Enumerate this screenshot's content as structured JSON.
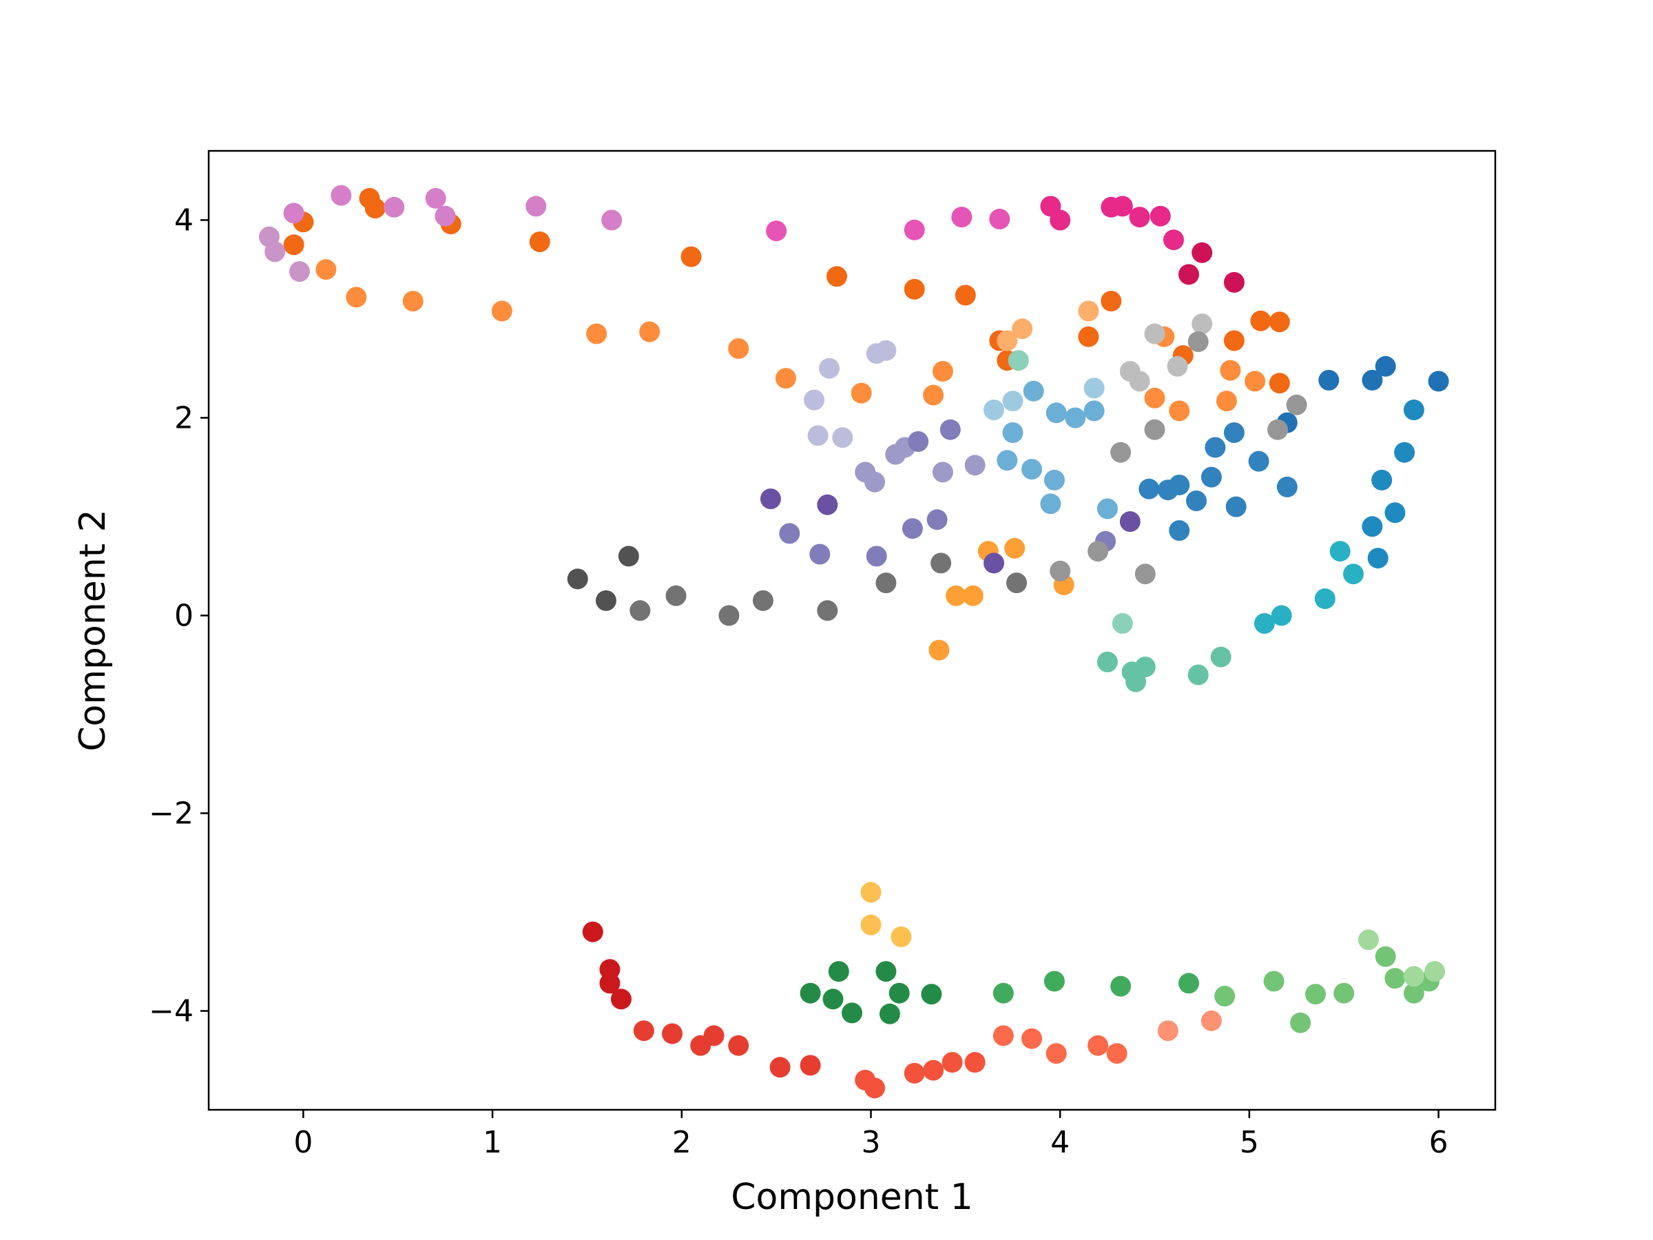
{
  "chart_data": {
    "type": "scatter",
    "title": "",
    "xlabel": "Component 1",
    "ylabel": "Component 2",
    "xlim": [
      -0.5,
      6.3
    ],
    "ylim": [
      -5.0,
      4.7
    ],
    "grid": false,
    "legend": "none",
    "xticks": [
      {
        "value": 0,
        "label": "0"
      },
      {
        "value": 1,
        "label": "1"
      },
      {
        "value": 2,
        "label": "2"
      },
      {
        "value": 3,
        "label": "3"
      },
      {
        "value": 4,
        "label": "4"
      },
      {
        "value": 5,
        "label": "5"
      },
      {
        "value": 6,
        "label": "6"
      }
    ],
    "yticks": [
      {
        "value": 4,
        "label": "4"
      },
      {
        "value": 2,
        "label": "2"
      },
      {
        "value": 0,
        "label": "0"
      },
      {
        "value": -2,
        "label": "−2"
      },
      {
        "value": -4,
        "label": "−4"
      }
    ],
    "series": [
      {
        "color": "#f16913",
        "points": [
          [
            0.0,
            3.98
          ],
          [
            0.35,
            4.22
          ],
          [
            0.38,
            4.12
          ],
          [
            0.78,
            3.96
          ],
          [
            -0.05,
            3.75
          ],
          [
            1.25,
            3.78
          ],
          [
            2.05,
            3.63
          ],
          [
            2.82,
            3.43
          ],
          [
            3.23,
            3.3
          ],
          [
            3.5,
            3.24
          ],
          [
            3.68,
            2.78
          ],
          [
            3.72,
            2.58
          ],
          [
            4.15,
            2.82
          ],
          [
            4.27,
            3.18
          ],
          [
            4.65,
            2.63
          ],
          [
            4.92,
            2.78
          ],
          [
            5.06,
            2.98
          ],
          [
            5.16,
            2.97
          ],
          [
            5.16,
            2.35
          ]
        ]
      },
      {
        "color": "#fd8d3c",
        "points": [
          [
            0.12,
            3.5
          ],
          [
            0.28,
            3.22
          ],
          [
            0.58,
            3.18
          ],
          [
            1.05,
            3.08
          ],
          [
            1.55,
            2.85
          ],
          [
            1.83,
            2.87
          ],
          [
            2.3,
            2.7
          ],
          [
            2.55,
            2.4
          ],
          [
            2.95,
            2.25
          ],
          [
            3.33,
            2.23
          ],
          [
            3.38,
            2.47
          ],
          [
            4.55,
            2.82
          ],
          [
            4.5,
            2.2
          ],
          [
            4.63,
            2.07
          ],
          [
            4.88,
            2.17
          ],
          [
            4.9,
            2.48
          ],
          [
            5.03,
            2.37
          ]
        ]
      },
      {
        "color": "#fdae6b",
        "points": [
          [
            3.72,
            2.78
          ],
          [
            3.8,
            2.9
          ],
          [
            4.15,
            3.08
          ],
          [
            3.78,
            2.58
          ]
        ]
      },
      {
        "color": "#fd9f35",
        "points": [
          [
            3.62,
            0.65
          ],
          [
            3.76,
            0.68
          ],
          [
            3.45,
            0.2
          ],
          [
            3.54,
            0.2
          ],
          [
            4.02,
            0.31
          ],
          [
            3.36,
            -0.35
          ]
        ]
      },
      {
        "color": "#fdc050",
        "points": [
          [
            3.0,
            -2.8
          ],
          [
            3.0,
            -3.13
          ],
          [
            3.16,
            -3.25
          ]
        ]
      },
      {
        "color": "#d47fc8",
        "points": [
          [
            -0.05,
            4.07
          ],
          [
            0.2,
            4.25
          ],
          [
            0.48,
            4.13
          ],
          [
            0.7,
            4.22
          ],
          [
            0.75,
            4.04
          ],
          [
            1.23,
            4.14
          ],
          [
            1.63,
            4.0
          ]
        ]
      },
      {
        "color": "#c994c7",
        "points": [
          [
            -0.18,
            3.83
          ],
          [
            -0.15,
            3.68
          ],
          [
            -0.02,
            3.48
          ]
        ]
      },
      {
        "color": "#e655b5",
        "points": [
          [
            2.5,
            3.89
          ],
          [
            3.23,
            3.9
          ],
          [
            3.48,
            4.03
          ],
          [
            3.68,
            4.01
          ]
        ]
      },
      {
        "color": "#e7298a",
        "points": [
          [
            3.95,
            4.14
          ],
          [
            4.0,
            4.0
          ],
          [
            4.27,
            4.13
          ],
          [
            4.33,
            4.14
          ],
          [
            4.42,
            4.03
          ],
          [
            4.53,
            4.04
          ],
          [
            4.6,
            3.8
          ]
        ]
      },
      {
        "color": "#ce1256",
        "points": [
          [
            4.68,
            3.45
          ],
          [
            4.75,
            3.67
          ],
          [
            4.92,
            3.37
          ]
        ]
      },
      {
        "color": "#bcbddc",
        "points": [
          [
            2.7,
            2.18
          ],
          [
            2.78,
            2.5
          ],
          [
            3.03,
            2.65
          ],
          [
            3.08,
            2.68
          ],
          [
            2.72,
            1.82
          ],
          [
            2.85,
            1.8
          ]
        ]
      },
      {
        "color": "#9e9ac8",
        "points": [
          [
            2.97,
            1.45
          ],
          [
            3.02,
            1.35
          ],
          [
            3.13,
            1.63
          ],
          [
            3.18,
            1.7
          ],
          [
            3.38,
            1.45
          ],
          [
            3.55,
            1.52
          ]
        ]
      },
      {
        "color": "#807dba",
        "points": [
          [
            3.25,
            1.76
          ],
          [
            3.42,
            1.88
          ],
          [
            2.57,
            0.83
          ],
          [
            2.73,
            0.62
          ],
          [
            3.03,
            0.6
          ],
          [
            3.22,
            0.88
          ],
          [
            3.35,
            0.97
          ],
          [
            4.24,
            0.75
          ]
        ]
      },
      {
        "color": "#6a51a3",
        "points": [
          [
            2.47,
            1.18
          ],
          [
            2.77,
            1.12
          ],
          [
            4.37,
            0.95
          ],
          [
            3.65,
            0.53
          ]
        ]
      },
      {
        "color": "#9ecae1",
        "points": [
          [
            3.65,
            2.08
          ],
          [
            3.75,
            2.17
          ],
          [
            4.18,
            2.3
          ]
        ]
      },
      {
        "color": "#6baed6",
        "points": [
          [
            3.86,
            2.27
          ],
          [
            3.98,
            2.05
          ],
          [
            4.08,
            2.0
          ],
          [
            4.18,
            2.07
          ],
          [
            3.75,
            1.85
          ],
          [
            3.72,
            1.57
          ],
          [
            3.85,
            1.48
          ],
          [
            3.97,
            1.37
          ],
          [
            3.95,
            1.13
          ],
          [
            4.25,
            1.08
          ]
        ]
      },
      {
        "color": "#3182bd",
        "points": [
          [
            4.47,
            1.28
          ],
          [
            4.57,
            1.27
          ],
          [
            4.63,
            1.32
          ],
          [
            4.72,
            1.16
          ],
          [
            4.63,
            0.86
          ],
          [
            4.82,
            1.7
          ],
          [
            4.92,
            1.85
          ],
          [
            4.8,
            1.4
          ],
          [
            5.05,
            1.56
          ],
          [
            4.93,
            1.1
          ],
          [
            5.2,
            1.3
          ]
        ]
      },
      {
        "color": "#2171b5",
        "points": [
          [
            5.42,
            2.38
          ],
          [
            5.65,
            2.38
          ],
          [
            5.72,
            2.52
          ],
          [
            5.2,
            1.95
          ],
          [
            6.0,
            2.37
          ]
        ]
      },
      {
        "color": "#1f8ac0",
        "points": [
          [
            5.87,
            2.08
          ],
          [
            5.82,
            1.65
          ],
          [
            5.7,
            1.37
          ],
          [
            5.77,
            1.04
          ],
          [
            5.65,
            0.9
          ],
          [
            5.68,
            0.58
          ]
        ]
      },
      {
        "color": "#2ab0c5",
        "points": [
          [
            5.48,
            0.65
          ],
          [
            5.55,
            0.42
          ],
          [
            5.4,
            0.17
          ],
          [
            5.17,
            0.0
          ],
          [
            5.08,
            -0.08
          ]
        ]
      },
      {
        "color": "#66c2a4",
        "points": [
          [
            4.85,
            -0.42
          ],
          [
            4.73,
            -0.6
          ],
          [
            4.45,
            -0.52
          ],
          [
            4.38,
            -0.57
          ],
          [
            4.4,
            -0.67
          ],
          [
            4.25,
            -0.47
          ]
        ]
      },
      {
        "color": "#8bd0b8",
        "points": [
          [
            4.33,
            -0.08
          ],
          [
            3.78,
            2.58
          ]
        ]
      },
      {
        "color": "#bdbdbd",
        "points": [
          [
            4.5,
            2.85
          ],
          [
            4.37,
            2.47
          ],
          [
            4.42,
            2.37
          ],
          [
            4.62,
            2.52
          ],
          [
            4.75,
            2.95
          ]
        ]
      },
      {
        "color": "#969696",
        "points": [
          [
            4.73,
            2.77
          ],
          [
            5.25,
            2.13
          ],
          [
            5.15,
            1.88
          ],
          [
            4.5,
            1.88
          ],
          [
            4.32,
            1.65
          ],
          [
            4.45,
            0.42
          ],
          [
            4.2,
            0.65
          ],
          [
            4.0,
            0.45
          ]
        ]
      },
      {
        "color": "#737373",
        "points": [
          [
            3.37,
            0.53
          ],
          [
            3.77,
            0.33
          ],
          [
            3.08,
            0.33
          ],
          [
            2.77,
            0.05
          ],
          [
            2.43,
            0.15
          ],
          [
            2.25,
            0.0
          ],
          [
            1.97,
            0.2
          ],
          [
            1.78,
            0.05
          ]
        ]
      },
      {
        "color": "#525252",
        "points": [
          [
            1.45,
            0.37
          ],
          [
            1.6,
            0.15
          ],
          [
            1.72,
            0.6
          ]
        ]
      },
      {
        "color": "#238b45",
        "points": [
          [
            2.68,
            -3.82
          ],
          [
            2.83,
            -3.6
          ],
          [
            2.8,
            -3.88
          ],
          [
            2.9,
            -4.02
          ],
          [
            3.08,
            -3.6
          ],
          [
            3.15,
            -3.82
          ],
          [
            3.1,
            -4.03
          ],
          [
            3.32,
            -3.83
          ]
        ]
      },
      {
        "color": "#41ab5d",
        "points": [
          [
            3.7,
            -3.82
          ],
          [
            3.97,
            -3.7
          ],
          [
            4.32,
            -3.75
          ],
          [
            4.68,
            -3.72
          ]
        ]
      },
      {
        "color": "#74c476",
        "points": [
          [
            4.87,
            -3.85
          ],
          [
            5.13,
            -3.7
          ],
          [
            5.27,
            -4.12
          ],
          [
            5.35,
            -3.83
          ],
          [
            5.5,
            -3.82
          ],
          [
            5.72,
            -3.45
          ],
          [
            5.77,
            -3.67
          ],
          [
            5.87,
            -3.82
          ],
          [
            5.95,
            -3.7
          ]
        ]
      },
      {
        "color": "#a1d99b",
        "points": [
          [
            5.63,
            -3.28
          ],
          [
            5.87,
            -3.65
          ],
          [
            5.98,
            -3.6
          ]
        ]
      },
      {
        "color": "#cb181d",
        "points": [
          [
            1.53,
            -3.2
          ],
          [
            1.62,
            -3.58
          ],
          [
            1.62,
            -3.72
          ],
          [
            1.68,
            -3.88
          ]
        ]
      },
      {
        "color": "#e53e30",
        "points": [
          [
            1.8,
            -4.2
          ],
          [
            1.95,
            -4.23
          ],
          [
            2.1,
            -4.35
          ],
          [
            2.17,
            -4.25
          ],
          [
            2.3,
            -4.35
          ],
          [
            2.52,
            -4.57
          ],
          [
            2.68,
            -4.55
          ]
        ]
      },
      {
        "color": "#f2533a",
        "points": [
          [
            2.97,
            -4.7
          ],
          [
            3.02,
            -4.78
          ],
          [
            3.23,
            -4.63
          ],
          [
            3.33,
            -4.6
          ],
          [
            3.43,
            -4.52
          ],
          [
            3.55,
            -4.52
          ]
        ]
      },
      {
        "color": "#fb6a4a",
        "points": [
          [
            3.7,
            -4.25
          ],
          [
            3.85,
            -4.28
          ],
          [
            3.98,
            -4.43
          ],
          [
            4.2,
            -4.35
          ],
          [
            4.3,
            -4.43
          ]
        ]
      },
      {
        "color": "#fc9272",
        "points": [
          [
            4.57,
            -4.2
          ],
          [
            4.8,
            -4.1
          ]
        ]
      }
    ]
  }
}
